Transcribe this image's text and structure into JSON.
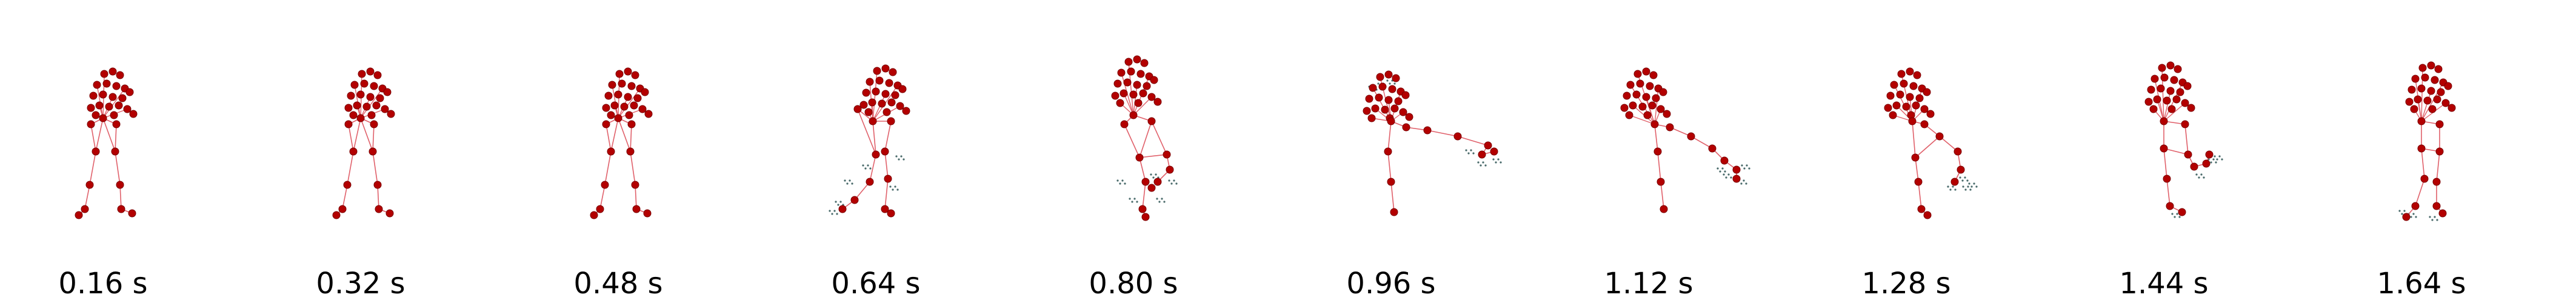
{
  "colors": {
    "joint": "#b30000",
    "joint_edge": "#7a0000",
    "bone": "#e0606a",
    "trace": "#4a6b6b"
  },
  "frames": [
    {
      "label": "0.16 s",
      "pose": "standing-arms-up"
    },
    {
      "label": "0.32 s",
      "pose": "standing-arms-up"
    },
    {
      "label": "0.48 s",
      "pose": "standing-arms-up"
    },
    {
      "label": "0.64 s",
      "pose": "step-back"
    },
    {
      "label": "0.80 s",
      "pose": "knee-raise"
    },
    {
      "label": "0.96 s",
      "pose": "leg-extended-side"
    },
    {
      "label": "1.12 s",
      "pose": "leg-extended-low"
    },
    {
      "label": "1.28 s",
      "pose": "leg-returning"
    },
    {
      "label": "1.44 s",
      "pose": "leg-lowered"
    },
    {
      "label": "1.64 s",
      "pose": "standing-feet-together"
    }
  ]
}
